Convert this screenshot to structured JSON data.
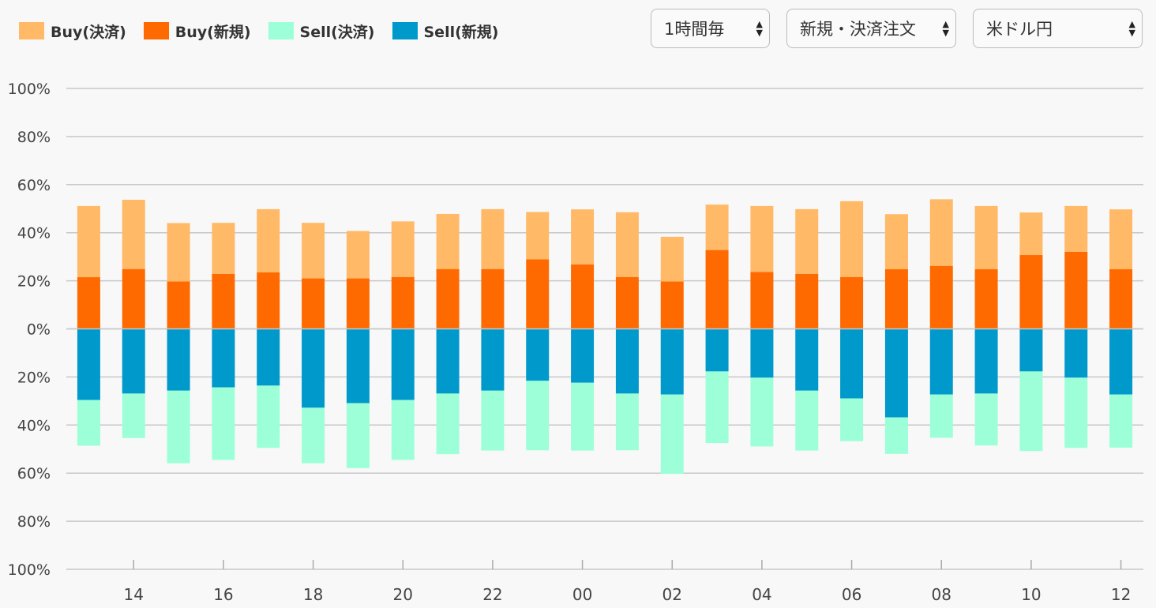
{
  "legend": [
    {
      "label": "Buy(決済)",
      "color": "#ffb967"
    },
    {
      "label": "Buy(新規)",
      "color": "#ff6a00"
    },
    {
      "label": "Sell(決済)",
      "color": "#9cffd8"
    },
    {
      "label": "Sell(新規)",
      "color": "#0099cc"
    }
  ],
  "controls": {
    "interval": "1時間毎",
    "order_type": "新規・決済注文",
    "currency_pair": "米ドル円"
  },
  "chart_data": {
    "type": "bar",
    "stacked": true,
    "diverging": true,
    "y_tick_labels": [
      "100%",
      "80%",
      "60%",
      "40%",
      "20%",
      "0%",
      "20%",
      "40%",
      "60%",
      "80%",
      "100%"
    ],
    "ylim": [
      -100,
      100
    ],
    "categories": [
      "13",
      "14",
      "15",
      "16",
      "17",
      "18",
      "19",
      "20",
      "21",
      "22",
      "23",
      "00",
      "01",
      "02",
      "03",
      "04",
      "05",
      "06",
      "07",
      "08",
      "09",
      "10",
      "11",
      "12"
    ],
    "x_tick_labels": [
      "14",
      "16",
      "18",
      "20",
      "22",
      "00",
      "02",
      "04",
      "06",
      "08",
      "10",
      "12"
    ],
    "grid": true,
    "series": [
      {
        "name": "Buy(新規)",
        "side": "buy",
        "color": "#ff6a00",
        "values": [
          21.5,
          24.9,
          19.7,
          22.9,
          23.5,
          21.0,
          21.0,
          21.6,
          24.9,
          24.9,
          28.9,
          26.8,
          21.6,
          19.7,
          32.8,
          23.7,
          22.9,
          21.6,
          24.8,
          26.2,
          24.8,
          30.7,
          32.1,
          24.8
        ]
      },
      {
        "name": "Buy(決済)",
        "side": "buy",
        "color": "#ffb967",
        "values": [
          29.6,
          28.8,
          24.3,
          21.2,
          26.3,
          23.1,
          19.7,
          23.1,
          22.9,
          24.9,
          19.7,
          22.9,
          26.9,
          18.6,
          18.9,
          27.4,
          26.9,
          31.5,
          22.9,
          27.7,
          26.3,
          17.7,
          19.0,
          24.9
        ]
      },
      {
        "name": "Sell(新規)",
        "side": "sell",
        "color": "#0099cc",
        "values": [
          29.6,
          26.9,
          25.7,
          24.3,
          23.6,
          32.8,
          30.9,
          29.6,
          26.9,
          25.7,
          21.6,
          22.4,
          26.9,
          27.3,
          17.7,
          20.3,
          25.7,
          28.9,
          36.8,
          27.3,
          26.9,
          17.7,
          20.3,
          27.3
        ]
      },
      {
        "name": "Sell(決済)",
        "side": "sell",
        "color": "#9cffd8",
        "values": [
          19.0,
          18.5,
          30.2,
          30.2,
          25.9,
          23.1,
          27.0,
          24.9,
          25.2,
          24.9,
          28.9,
          28.2,
          23.6,
          33.0,
          29.8,
          28.6,
          24.9,
          17.8,
          15.2,
          18.0,
          21.6,
          33.1,
          29.2,
          22.1
        ]
      }
    ]
  }
}
